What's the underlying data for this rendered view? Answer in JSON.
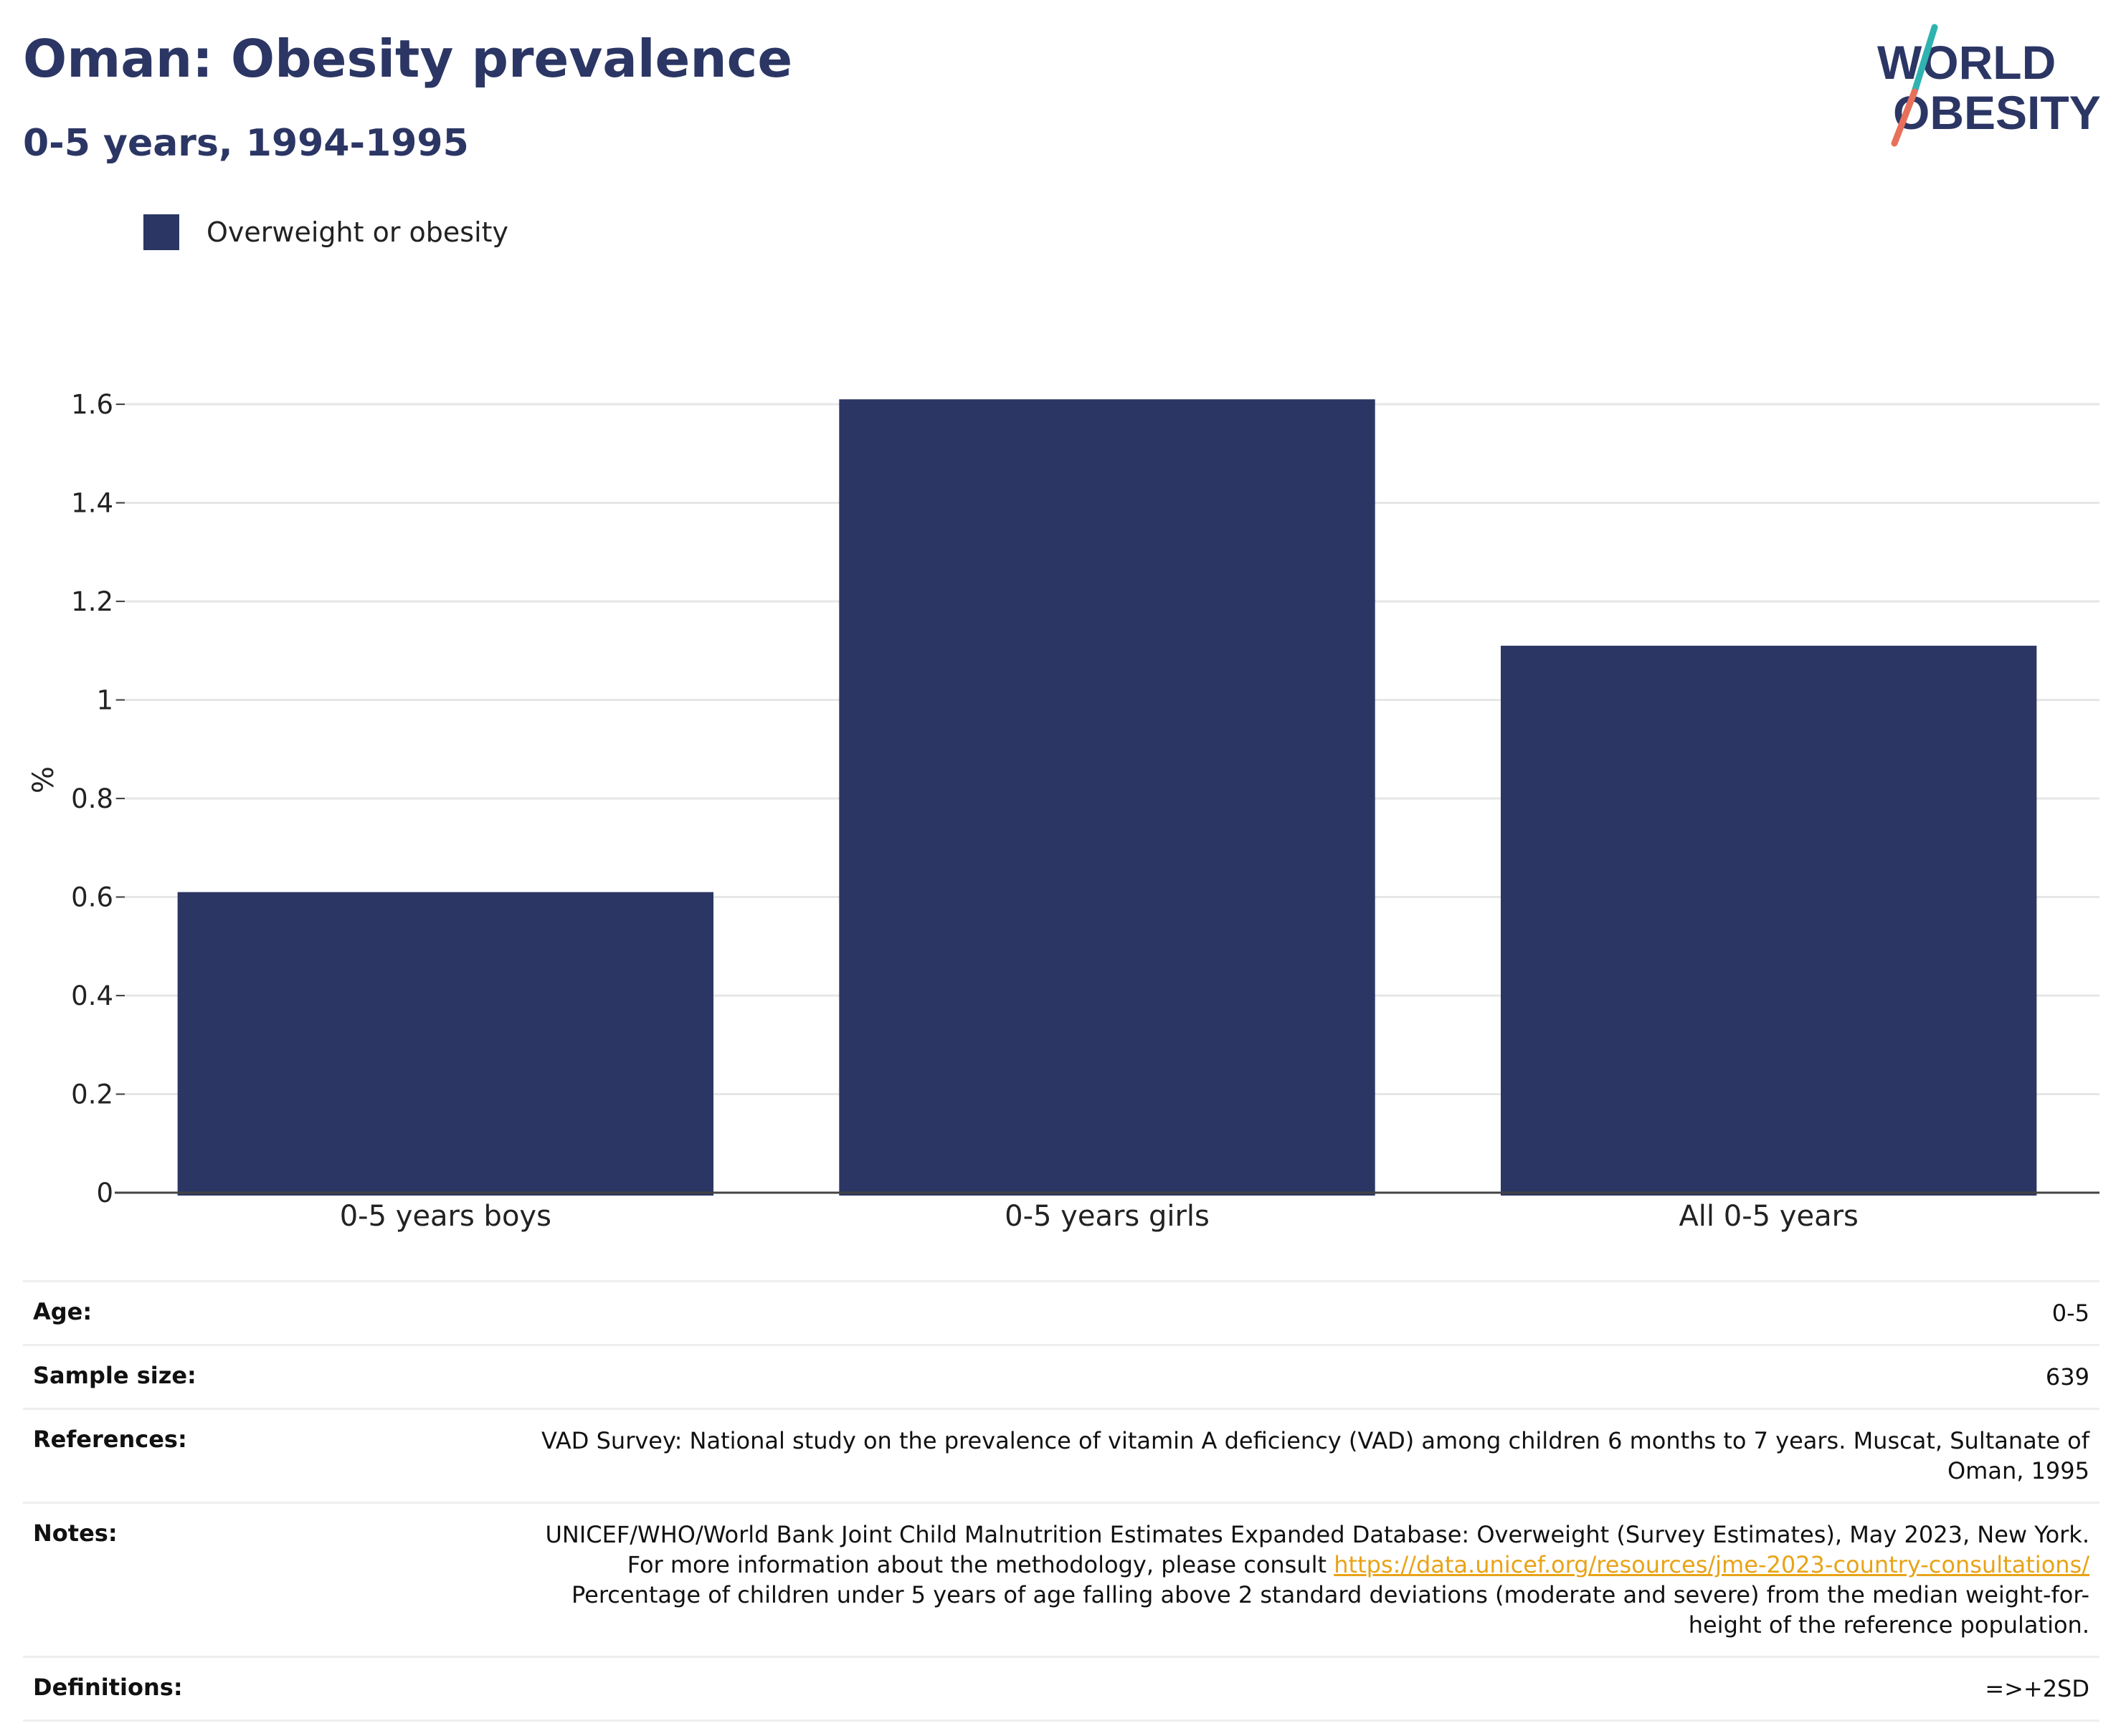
{
  "title": "Oman: Obesity prevalence",
  "subtitle": "0-5 years, 1994-1995",
  "logo": {
    "line1": "WORLD",
    "line2": "OBESITY",
    "colors": {
      "text": "#2b3664",
      "slash_top": "#2fb3b1",
      "slash_bottom": "#e8705a"
    }
  },
  "legend": [
    {
      "label": "Overweight or obesity",
      "color": "#2b3664"
    }
  ],
  "chart_data": {
    "type": "bar",
    "categories": [
      "0-5 years boys",
      "0-5 years girls",
      "All 0-5 years"
    ],
    "series": [
      {
        "name": "Overweight or obesity",
        "values": [
          0.61,
          1.61,
          1.11
        ],
        "color": "#2b3664"
      }
    ],
    "ylabel": "%",
    "ylim": [
      0,
      1.6
    ],
    "yticks": [
      0,
      0.2,
      0.4,
      0.6,
      0.8,
      1,
      1.2,
      1.4,
      1.6
    ],
    "grid": true,
    "legend_position": "top-left"
  },
  "meta": [
    {
      "key": "Age:",
      "value": "0-5"
    },
    {
      "key": "Sample size:",
      "value": "639"
    },
    {
      "key": "References:",
      "value": "VAD Survey: National study on the prevalence of vitamin A deficiency (VAD) among children 6 months to 7 years. Muscat, Sultanate of Oman, 1995"
    },
    {
      "key": "Notes:",
      "value_before": "UNICEF/WHO/World Bank Joint Child Malnutrition Estimates Expanded Database: Overweight (Survey Estimates), May 2023, New York. For more information about the methodology, please consult ",
      "link": "https://data.unicef.org/resources/jme-2023-country-consultations/",
      "value_after": " Percentage of children under 5 years of age falling above 2 standard deviations (moderate and severe) from the median weight-for-height of the reference population."
    },
    {
      "key": "Definitions:",
      "value": "=>+2SD"
    }
  ]
}
